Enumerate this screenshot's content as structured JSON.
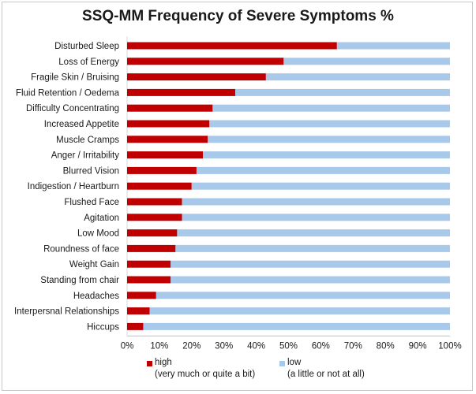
{
  "chart_data": {
    "type": "bar",
    "orientation": "horizontal",
    "stacked": "percent",
    "title": "SSQ-MM Frequency of Severe Symptoms %",
    "categories": [
      "Disturbed Sleep",
      "Loss of Energy",
      "Fragile Skin / Bruising",
      "Fluid Retention / Oedema",
      "Difficulty Concentrating",
      "Increased Appetite",
      "Muscle Cramps",
      "Anger / Irritability",
      "Blurred Vision",
      "Indigestion / Heartburn",
      "Flushed Face",
      "Agitation",
      "Low Mood",
      "Roundness of face",
      "Weight Gain",
      "Standing from chair",
      "Headaches",
      "Interpersnal Relationships",
      "Hiccups"
    ],
    "series": [
      {
        "name": "high",
        "name_line2": "(very much or quite a bit)",
        "color": "#c00000",
        "values": [
          65,
          48.5,
          43,
          33.5,
          26.5,
          25.5,
          25,
          23.5,
          21.5,
          20,
          17,
          17,
          15.5,
          15,
          13.5,
          13.5,
          9,
          7,
          5
        ]
      },
      {
        "name": "low",
        "name_line2": "(a little or not at all)",
        "color": "#a9c9ea",
        "values": [
          35,
          51.5,
          57,
          66.5,
          73.5,
          74.5,
          75,
          76.5,
          78.5,
          80,
          83,
          83,
          84.5,
          85,
          86.5,
          86.5,
          91,
          93,
          95
        ]
      }
    ],
    "xlim": [
      0,
      100
    ],
    "xticks": [
      "0%",
      "10%",
      "20%",
      "30%",
      "40%",
      "50%",
      "60%",
      "70%",
      "80%",
      "90%",
      "100%"
    ],
    "grid": false,
    "legend_position": "bottom"
  }
}
